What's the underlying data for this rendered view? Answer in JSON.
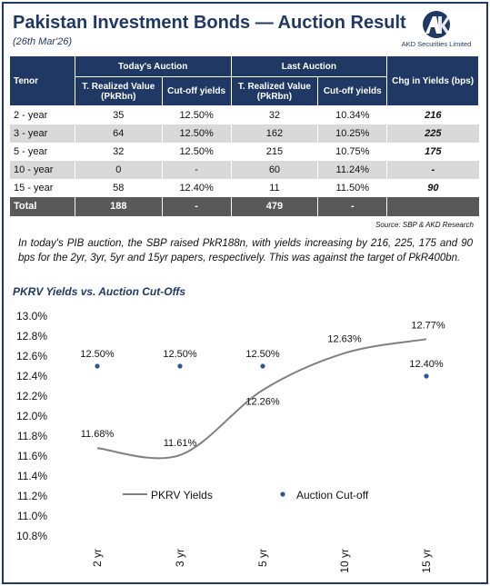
{
  "header": {
    "title": "Pakistan Investment Bonds — Auction Result",
    "date": "(26th Mar'26)",
    "logo_text": "AKD Securities Limited"
  },
  "table": {
    "col_tenor": "Tenor",
    "group_today": "Today's Auction",
    "group_last": "Last Auction",
    "col_chg": "Chg in Yields (bps)",
    "col_realized": "T. Realized Value (PkRbn)",
    "col_cutoff": "Cut-off yields",
    "rows": [
      {
        "tenor": "2 - year",
        "today_value": "35",
        "today_cutoff": "12.50%",
        "last_value": "32",
        "last_cutoff": "10.34%",
        "chg": "216"
      },
      {
        "tenor": "3 - year",
        "today_value": "64",
        "today_cutoff": "12.50%",
        "last_value": "162",
        "last_cutoff": "10.25%",
        "chg": "225"
      },
      {
        "tenor": "5 - year",
        "today_value": "32",
        "today_cutoff": "12.50%",
        "last_value": "215",
        "last_cutoff": "10.75%",
        "chg": "175"
      },
      {
        "tenor": "10 - year",
        "today_value": "0",
        "today_cutoff": "-",
        "last_value": "60",
        "last_cutoff": "11.24%",
        "chg": "-"
      },
      {
        "tenor": "15 - year",
        "today_value": "58",
        "today_cutoff": "12.40%",
        "last_value": "11",
        "last_cutoff": "11.50%",
        "chg": "90"
      }
    ],
    "total": {
      "label": "Total",
      "today_value": "188",
      "today_cutoff": "-",
      "last_value": "479",
      "last_cutoff": "-",
      "chg": ""
    }
  },
  "source": "Source: SBP & AKD Research",
  "commentary": "In today's PIB auction, the SBP raised PkR188n, with yields increasing by  216, 225, 175 and 90 bps for the 2yr, 3yr, 5yr and 15yr papers, respectively. This was against the target of PkR400bn.",
  "chart_title": "PKRV Yields vs. Auction Cut-Offs",
  "chart_data": {
    "type": "line",
    "categories": [
      "2 yr",
      "3 yr",
      "5 yr",
      "10 yr",
      "15 yr"
    ],
    "series": [
      {
        "name": "PKRV Yields",
        "kind": "line",
        "color": "#808080",
        "values": [
          11.68,
          11.61,
          12.26,
          12.63,
          12.77
        ],
        "labels": [
          "11.68%",
          "11.61%",
          "12.26%",
          "12.63%",
          "12.77%"
        ]
      },
      {
        "name": "Auction Cut-off",
        "kind": "scatter",
        "color": "#2f5597",
        "values": [
          12.5,
          12.5,
          12.5,
          null,
          12.4
        ],
        "labels": [
          "12.50%",
          "12.50%",
          "12.50%",
          null,
          "12.40%"
        ]
      }
    ],
    "y_ticks": [
      "13.0%",
      "12.8%",
      "12.6%",
      "12.4%",
      "12.2%",
      "12.0%",
      "11.8%",
      "11.6%",
      "11.4%",
      "11.2%",
      "11.0%",
      "10.8%"
    ],
    "ylim": [
      10.8,
      13.0
    ],
    "grid": false,
    "legend_position": "inside-bottom"
  }
}
